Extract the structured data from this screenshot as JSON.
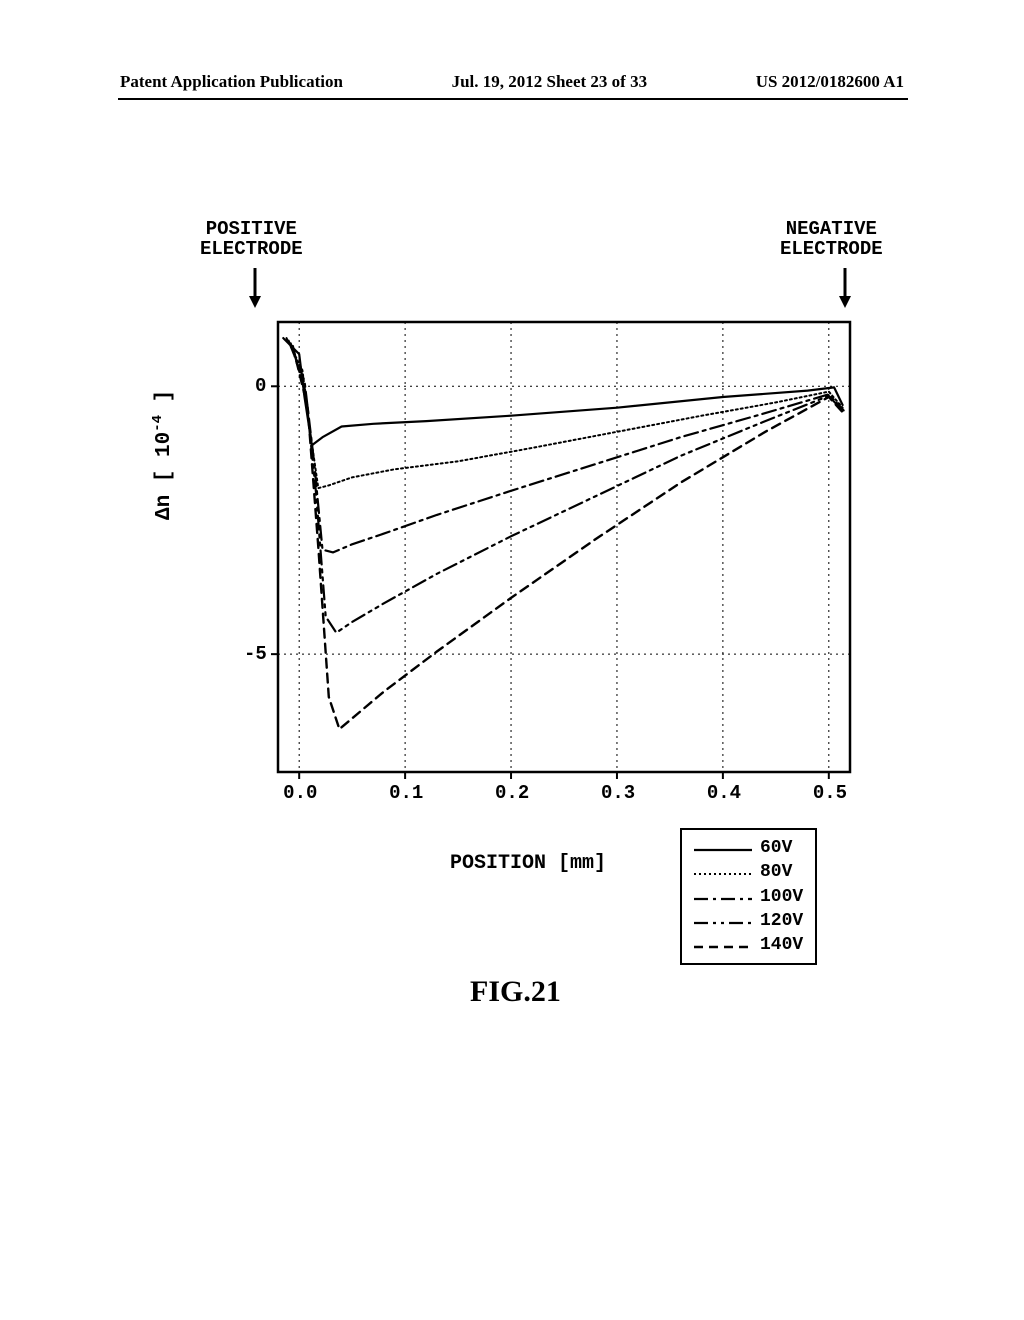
{
  "header": {
    "left": "Patent Application Publication",
    "center": "Jul. 19, 2012  Sheet 23 of 33",
    "right": "US 2012/0182600 A1"
  },
  "electrodes": {
    "positive": "POSITIVE\nELECTRODE",
    "negative": "NEGATIVE\nELECTRODE"
  },
  "chart": {
    "type": "line",
    "xlabel": "POSITION [mm]",
    "ylabel_prefix": "Δn [ 10",
    "ylabel_exp": "-4",
    "ylabel_suffix": " ]",
    "xlim": [
      -0.02,
      0.52
    ],
    "ylim": [
      -7.2,
      1.2
    ],
    "xticks": [
      0.0,
      0.1,
      0.2,
      0.3,
      0.4,
      0.5
    ],
    "xtick_labels": [
      "0.0",
      "0.1",
      "0.2",
      "0.3",
      "0.4",
      "0.5"
    ],
    "yticks": [
      0,
      -5
    ],
    "ytick_labels": [
      "0",
      "-5"
    ],
    "grid_x": [
      0.0,
      0.1,
      0.2,
      0.3,
      0.4,
      0.5
    ],
    "grid_y": [
      0,
      -5
    ],
    "grid_color": "#000000",
    "grid_dash": "2,4",
    "axis_color": "#000000",
    "axis_width": 2.5,
    "background_color": "#ffffff",
    "plot_margin": {
      "l": 28,
      "r": 10,
      "t": 6,
      "b": 34
    },
    "series": [
      {
        "name": "60V",
        "label": "60V",
        "color": "#000000",
        "width": 2.2,
        "dash": "none",
        "points": [
          [
            -0.015,
            0.9
          ],
          [
            0.0,
            0.6
          ],
          [
            0.005,
            -0.2
          ],
          [
            0.012,
            -1.1
          ],
          [
            0.022,
            -0.95
          ],
          [
            0.04,
            -0.75
          ],
          [
            0.07,
            -0.7
          ],
          [
            0.12,
            -0.65
          ],
          [
            0.2,
            -0.55
          ],
          [
            0.3,
            -0.4
          ],
          [
            0.4,
            -0.2
          ],
          [
            0.48,
            -0.08
          ],
          [
            0.505,
            -0.02
          ],
          [
            0.513,
            -0.35
          ]
        ]
      },
      {
        "name": "80V",
        "label": "80V",
        "color": "#000000",
        "width": 2.0,
        "dash": "2,3",
        "points": [
          [
            -0.012,
            0.9
          ],
          [
            0.003,
            0.3
          ],
          [
            0.01,
            -0.8
          ],
          [
            0.018,
            -1.9
          ],
          [
            0.028,
            -1.85
          ],
          [
            0.05,
            -1.7
          ],
          [
            0.09,
            -1.55
          ],
          [
            0.15,
            -1.4
          ],
          [
            0.22,
            -1.15
          ],
          [
            0.3,
            -0.85
          ],
          [
            0.38,
            -0.55
          ],
          [
            0.45,
            -0.3
          ],
          [
            0.5,
            -0.1
          ],
          [
            0.513,
            -0.4
          ]
        ]
      },
      {
        "name": "100V",
        "label": "100V",
        "color": "#000000",
        "width": 2.2,
        "dash": "14,5,3,5",
        "points": [
          [
            -0.01,
            0.85
          ],
          [
            0.005,
            0.1
          ],
          [
            0.014,
            -1.4
          ],
          [
            0.022,
            -3.05
          ],
          [
            0.032,
            -3.1
          ],
          [
            0.05,
            -2.95
          ],
          [
            0.08,
            -2.75
          ],
          [
            0.13,
            -2.4
          ],
          [
            0.2,
            -1.95
          ],
          [
            0.28,
            -1.45
          ],
          [
            0.36,
            -0.95
          ],
          [
            0.44,
            -0.5
          ],
          [
            0.5,
            -0.15
          ],
          [
            0.514,
            -0.45
          ]
        ]
      },
      {
        "name": "120V",
        "label": "120V",
        "color": "#000000",
        "width": 2.2,
        "dash": "14,5,3,5,3,5",
        "points": [
          [
            -0.008,
            0.8
          ],
          [
            0.006,
            -0.1
          ],
          [
            0.016,
            -2.0
          ],
          [
            0.025,
            -4.3
          ],
          [
            0.035,
            -4.6
          ],
          [
            0.05,
            -4.4
          ],
          [
            0.08,
            -4.05
          ],
          [
            0.13,
            -3.5
          ],
          [
            0.2,
            -2.8
          ],
          [
            0.28,
            -2.05
          ],
          [
            0.36,
            -1.3
          ],
          [
            0.44,
            -0.65
          ],
          [
            0.5,
            -0.18
          ],
          [
            0.515,
            -0.5
          ]
        ]
      },
      {
        "name": "140V",
        "label": "140V",
        "color": "#000000",
        "width": 2.4,
        "dash": "9,6",
        "points": [
          [
            -0.006,
            0.75
          ],
          [
            0.008,
            -0.4
          ],
          [
            0.018,
            -3.0
          ],
          [
            0.028,
            -5.8
          ],
          [
            0.038,
            -6.4
          ],
          [
            0.05,
            -6.2
          ],
          [
            0.08,
            -5.7
          ],
          [
            0.13,
            -4.95
          ],
          [
            0.2,
            -3.95
          ],
          [
            0.28,
            -2.85
          ],
          [
            0.36,
            -1.8
          ],
          [
            0.44,
            -0.85
          ],
          [
            0.5,
            -0.2
          ],
          [
            0.516,
            -0.55
          ]
        ]
      }
    ]
  },
  "legend": {
    "border_color": "#000000",
    "items": [
      {
        "label": "60V",
        "dash": "none",
        "width": 2.2
      },
      {
        "label": "80V",
        "dash": "2,3",
        "width": 2.0
      },
      {
        "label": "100V",
        "dash": "14,5,3,5",
        "width": 2.2
      },
      {
        "label": "120V",
        "dash": "14,5,3,5,3,5",
        "width": 2.2
      },
      {
        "label": "140V",
        "dash": "9,6",
        "width": 2.4
      }
    ]
  },
  "caption": "FIG.21"
}
